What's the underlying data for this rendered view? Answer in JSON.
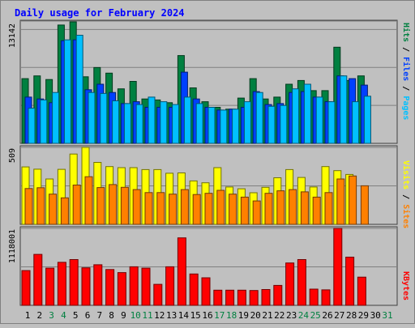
{
  "chart_data": [
    {
      "type": "bar",
      "title": "Daily usage for February 2024",
      "ylabel_max": "13142",
      "legend": [
        {
          "name": "Pages",
          "color": "#00c0ff"
        },
        {
          "name": "Files",
          "color": "#0040ff"
        },
        {
          "name": "Hits",
          "color": "#008040"
        }
      ],
      "categories": [
        "1",
        "2",
        "3",
        "4",
        "5",
        "6",
        "7",
        "8",
        "9",
        "10",
        "11",
        "12",
        "13",
        "14",
        "15",
        "16",
        "17",
        "18",
        "19",
        "20",
        "21",
        "22",
        "23",
        "24",
        "25",
        "26",
        "27",
        "28",
        "29",
        "30",
        "31"
      ],
      "weekend_days": [
        "3",
        "4",
        "10",
        "11",
        "17",
        "18",
        "24",
        "25",
        "31"
      ],
      "ylim": [
        0,
        13142
      ],
      "series": [
        {
          "name": "Hits",
          "color": "#008040",
          "values": [
            7000,
            7300,
            6900,
            12800,
            13142,
            7200,
            8200,
            7600,
            5900,
            6700,
            4800,
            4700,
            4400,
            9500,
            6000,
            4500,
            3900,
            3700,
            4900,
            7000,
            4800,
            5000,
            6400,
            6800,
            5700,
            5700,
            10400,
            6800,
            7300,
            0,
            0
          ]
        },
        {
          "name": "Files",
          "color": "#0040ff",
          "values": [
            5000,
            4800,
            4400,
            11100,
            11200,
            5800,
            6400,
            5500,
            4300,
            4500,
            3900,
            3900,
            3900,
            7700,
            4800,
            3900,
            3600,
            3700,
            3900,
            5600,
            4200,
            4300,
            5500,
            5600,
            5000,
            4500,
            7300,
            7000,
            6300,
            0,
            0
          ]
        },
        {
          "name": "Pages",
          "color": "#00c0ff",
          "values": [
            3800,
            4700,
            5500,
            11200,
            11700,
            5500,
            5400,
            4600,
            4300,
            4200,
            5000,
            4500,
            4200,
            5000,
            4300,
            3900,
            3600,
            3700,
            4500,
            5500,
            4000,
            4100,
            5900,
            6400,
            5000,
            4500,
            7300,
            4500,
            5100,
            0,
            0
          ]
        }
      ]
    },
    {
      "type": "bar",
      "ylabel_max": "509",
      "legend": [
        {
          "name": "Sites",
          "color": "#ff8000"
        },
        {
          "name": "Visits",
          "color": "#ffff00"
        }
      ],
      "categories": [
        "1",
        "2",
        "3",
        "4",
        "5",
        "6",
        "7",
        "8",
        "9",
        "10",
        "11",
        "12",
        "13",
        "14",
        "15",
        "16",
        "17",
        "18",
        "19",
        "20",
        "21",
        "22",
        "23",
        "24",
        "25",
        "26",
        "27",
        "28",
        "29",
        "30",
        "31"
      ],
      "ylim": [
        0,
        509
      ],
      "series": [
        {
          "name": "Visits",
          "color": "#ffff00",
          "values": [
            380,
            365,
            300,
            364,
            465,
            509,
            410,
            382,
            375,
            375,
            362,
            362,
            338,
            340,
            287,
            275,
            375,
            247,
            235,
            209,
            245,
            308,
            362,
            310,
            247,
            382,
            355,
            330,
            0,
            0,
            0
          ]
        },
        {
          "name": "Sites",
          "color": "#ff8000",
          "values": [
            237,
            242,
            200,
            175,
            260,
            315,
            243,
            263,
            245,
            230,
            210,
            210,
            200,
            230,
            197,
            205,
            225,
            200,
            180,
            155,
            205,
            222,
            230,
            215,
            180,
            210,
            300,
            320,
            255,
            0,
            0
          ]
        }
      ]
    },
    {
      "type": "bar",
      "ylabel_max": "1118001",
      "legend": [
        {
          "name": "KBytes",
          "color": "#ff0000"
        }
      ],
      "categories": [
        "1",
        "2",
        "3",
        "4",
        "5",
        "6",
        "7",
        "8",
        "9",
        "10",
        "11",
        "12",
        "13",
        "14",
        "15",
        "16",
        "17",
        "18",
        "19",
        "20",
        "21",
        "22",
        "23",
        "24",
        "25",
        "26",
        "27",
        "28",
        "29",
        "30",
        "31"
      ],
      "ylim": [
        0,
        1118001
      ],
      "series": [
        {
          "name": "KBytes",
          "color": "#ff0000",
          "values": [
            505000,
            740000,
            540000,
            625000,
            665000,
            545000,
            590000,
            520000,
            475000,
            560000,
            540000,
            305000,
            560000,
            980000,
            455000,
            400000,
            220000,
            220000,
            220000,
            215000,
            230000,
            290000,
            615000,
            665000,
            235000,
            225000,
            1118001,
            700000,
            410000,
            0,
            0
          ]
        }
      ]
    }
  ]
}
